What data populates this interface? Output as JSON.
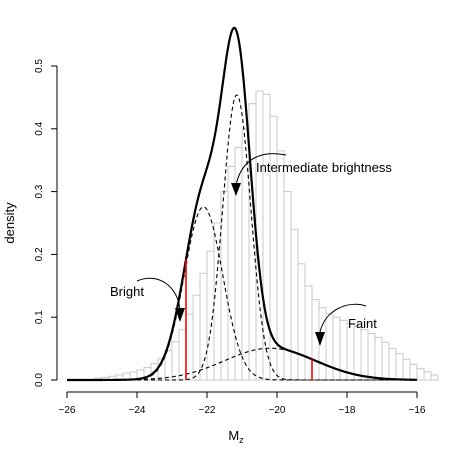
{
  "chart_data": {
    "type": "area",
    "xlabel_main": "M",
    "xlabel_sub": "z",
    "ylabel": "density",
    "xlim": [
      -26,
      -16
    ],
    "ylim": [
      0,
      0.5
    ],
    "x_ticks": [
      "−26",
      "−24",
      "−22",
      "−20",
      "−18",
      "−16"
    ],
    "x_tick_values": [
      -26,
      -24,
      -22,
      -20,
      -18,
      -16
    ],
    "y_ticks": [
      "0.0",
      "0.1",
      "0.2",
      "0.3",
      "0.4",
      "0.5"
    ],
    "y_tick_values": [
      0.0,
      0.1,
      0.2,
      0.3,
      0.4,
      0.5
    ],
    "histogram": {
      "bin_width": 0.2,
      "bin_start": -25.2,
      "densities": [
        0.003,
        0.004,
        0.006,
        0.008,
        0.011,
        0.013,
        0.016,
        0.02,
        0.026,
        0.034,
        0.047,
        0.061,
        0.08,
        0.105,
        0.135,
        0.17,
        0.205,
        0.25,
        0.3,
        0.34,
        0.37,
        0.4,
        0.44,
        0.46,
        0.455,
        0.42,
        0.365,
        0.3,
        0.24,
        0.185,
        0.15,
        0.128,
        0.115,
        0.105,
        0.1,
        0.095,
        0.09,
        0.085,
        0.08,
        0.074,
        0.068,
        0.06,
        0.05,
        0.042,
        0.033,
        0.025,
        0.018,
        0.013,
        0.008
      ]
    },
    "mixture_components": [
      {
        "name": "Bright",
        "mean": -22.1,
        "sd": 0.55,
        "weight": 0.38
      },
      {
        "name": "Intermediate brightness",
        "mean": -21.15,
        "sd": 0.4,
        "weight": 0.455
      },
      {
        "name": "Faint",
        "mean": -20.2,
        "sd": 1.3,
        "weight": 0.165
      }
    ],
    "thresholds": [
      -22.6,
      -19.0
    ],
    "annotations": [
      {
        "text": "Bright"
      },
      {
        "text": "Intermediate brightness"
      },
      {
        "text": "Faint"
      }
    ],
    "colors": {
      "threshold": "#ff0000",
      "bars": "#c8c8c8",
      "curve": "#000000"
    }
  }
}
